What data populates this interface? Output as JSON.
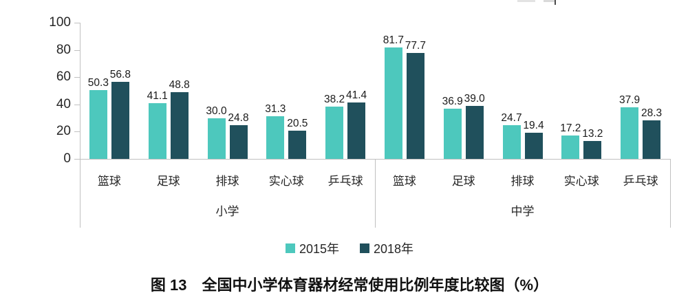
{
  "chart_data": {
    "type": "bar",
    "title": "图 13　全国中小学体育器材经常使用比例年度比较图（%）",
    "y_axis": {
      "min": 0,
      "max": 100,
      "ticks": [
        0,
        20,
        40,
        60,
        80,
        100
      ],
      "tick_labels": [
        "0",
        "20",
        "40",
        "60",
        "80",
        "100"
      ],
      "gridlines": false
    },
    "legend_position": "bottom",
    "legend": [
      {
        "label": "2015年",
        "color": "#4dc8bd"
      },
      {
        "label": "2018年",
        "color": "#20505c"
      }
    ],
    "groups": [
      {
        "label": "小学",
        "categories": [
          "篮球",
          "足球",
          "排球",
          "实心球",
          "乒乓球"
        ],
        "series": [
          {
            "name": "2015年",
            "values": [
              50.3,
              41.1,
              30.0,
              31.3,
              38.2
            ],
            "labels": [
              "50.3",
              "41.1",
              "30.0",
              "31.3",
              "38.2"
            ]
          },
          {
            "name": "2018年",
            "values": [
              56.8,
              48.8,
              24.8,
              20.5,
              41.4
            ],
            "labels": [
              "56.8",
              "48.8",
              "24.8",
              "20.5",
              "41.4"
            ]
          }
        ]
      },
      {
        "label": "中学",
        "categories": [
          "篮球",
          "足球",
          "排球",
          "实心球",
          "乒乓球"
        ],
        "series": [
          {
            "name": "2015年",
            "values": [
              81.7,
              36.9,
              24.7,
              17.2,
              37.9
            ],
            "labels": [
              "81.7",
              "36.9",
              "24.7",
              "17.2",
              "37.9"
            ]
          },
          {
            "name": "2018年",
            "values": [
              77.7,
              39.0,
              19.4,
              13.2,
              28.3
            ],
            "labels": [
              "77.7",
              "39.0",
              "19.4",
              "13.2",
              "28.3"
            ]
          }
        ]
      }
    ],
    "colors": {
      "series_2015": "#4dc8bd",
      "series_2018": "#20505c",
      "axis_line": "#c0c0c0",
      "label_text": "#262626",
      "title_text": "#111111"
    }
  }
}
